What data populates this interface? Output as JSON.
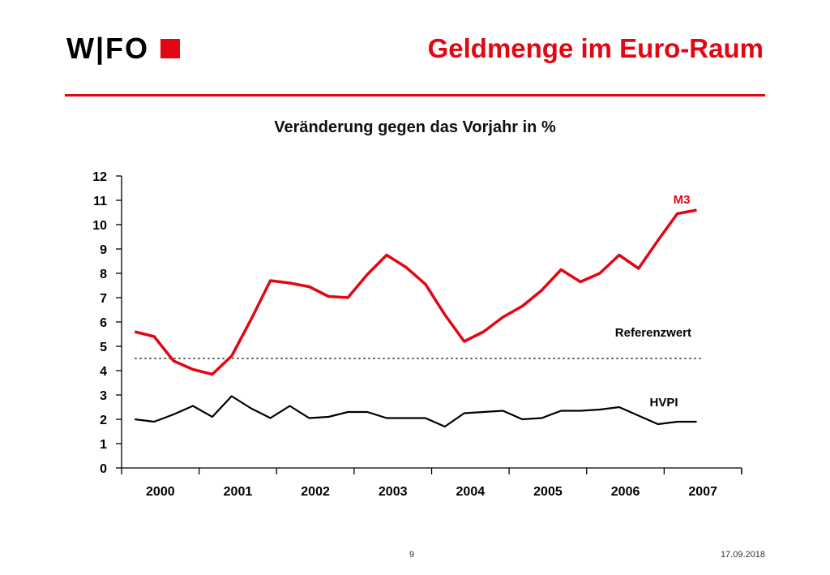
{
  "header": {
    "logo_text": "W|FO",
    "title": "Geldmenge im Euro-Raum",
    "accent_color": "#e30613"
  },
  "footer": {
    "page_number": "9",
    "date": "17.09.2018"
  },
  "chart_data": {
    "type": "line",
    "title": "Veränderung gegen das Vorjahr in %",
    "xlabel": "",
    "ylabel": "",
    "ylim": [
      0,
      12
    ],
    "y_ticks": [
      "0",
      "1",
      "2",
      "3",
      "4",
      "5",
      "6",
      "7",
      "8",
      "9",
      "10",
      "11",
      "12"
    ],
    "x_tick_labels": [
      "2000",
      "2001",
      "2002",
      "2003",
      "2004",
      "2005",
      "2006",
      "2007"
    ],
    "xlim": [
      1999.75,
      2007.75
    ],
    "grid": false,
    "series": [
      {
        "name": "M3",
        "color": "#e30613",
        "x": [
          1999.92,
          2000.17,
          2000.42,
          2000.67,
          2000.92,
          2001.17,
          2001.42,
          2001.67,
          2001.92,
          2002.17,
          2002.42,
          2002.67,
          2002.92,
          2003.17,
          2003.42,
          2003.67,
          2003.92,
          2004.17,
          2004.42,
          2004.67,
          2004.92,
          2005.17,
          2005.42,
          2005.67,
          2005.92,
          2006.17,
          2006.42,
          2006.67,
          2006.92,
          2007.17,
          2007.42
        ],
        "values": [
          5.6,
          5.4,
          4.4,
          4.05,
          3.85,
          4.6,
          6.1,
          7.7,
          7.6,
          7.45,
          7.05,
          7.0,
          7.95,
          8.75,
          8.25,
          7.55,
          6.3,
          5.2,
          5.6,
          6.2,
          6.65,
          7.3,
          8.15,
          7.65,
          8.0,
          8.75,
          8.2,
          9.35,
          10.45,
          10.6,
          null
        ],
        "label": "M3"
      },
      {
        "name": "HVPI",
        "color": "#000000",
        "x": [
          1999.92,
          2000.17,
          2000.42,
          2000.67,
          2000.92,
          2001.17,
          2001.42,
          2001.67,
          2001.92,
          2002.17,
          2002.42,
          2002.67,
          2002.92,
          2003.17,
          2003.42,
          2003.67,
          2003.92,
          2004.17,
          2004.42,
          2004.67,
          2004.92,
          2005.17,
          2005.42,
          2005.67,
          2005.92,
          2006.17,
          2006.42,
          2006.67,
          2006.92,
          2007.17,
          2007.42
        ],
        "values": [
          2.0,
          1.9,
          2.2,
          2.55,
          2.1,
          2.95,
          2.45,
          2.05,
          2.55,
          2.05,
          2.1,
          2.3,
          2.3,
          2.05,
          2.05,
          2.05,
          1.7,
          2.25,
          2.3,
          2.35,
          2.0,
          2.05,
          2.35,
          2.35,
          2.4,
          2.5,
          2.15,
          1.8,
          1.9,
          1.9,
          null
        ],
        "label": "HVPI"
      }
    ],
    "reference_line": {
      "label": "Referenzwert",
      "value": 4.5,
      "color": "#000000",
      "style": "dotted"
    }
  }
}
